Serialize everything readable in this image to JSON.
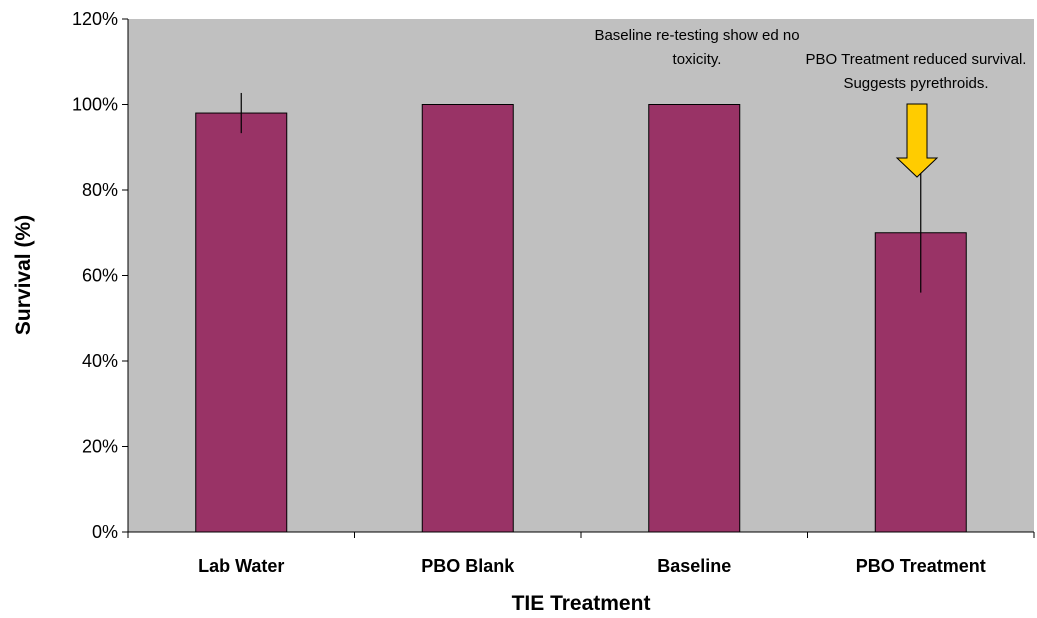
{
  "chart_data": {
    "type": "bar",
    "title": "",
    "xlabel": "TIE Treatment",
    "ylabel": "Survival (%)",
    "categories": [
      "Lab Water",
      "PBO Blank",
      "Baseline",
      "PBO Treatment"
    ],
    "values": [
      98,
      100,
      100,
      70
    ],
    "error": [
      4.7,
      0,
      0,
      14
    ],
    "ylim": [
      0,
      120
    ],
    "yticks": [
      0,
      20,
      40,
      60,
      80,
      100,
      120
    ],
    "ytick_labels": [
      "0%",
      "20%",
      "40%",
      "60%",
      "80%",
      "100%",
      "120%"
    ],
    "grid": false,
    "legend": "none",
    "colors": {
      "bar": "#993366",
      "plot_background": "#c0c0c0",
      "arrow": "#ffcc00"
    },
    "annotations": [
      {
        "lines": [
          "Baseline re-testing show ed no",
          "toxicity."
        ]
      },
      {
        "lines": [
          "PBO Treatment reduced survival.",
          "Suggests pyrethroids."
        ]
      }
    ],
    "arrow_target_category": "PBO Treatment"
  }
}
